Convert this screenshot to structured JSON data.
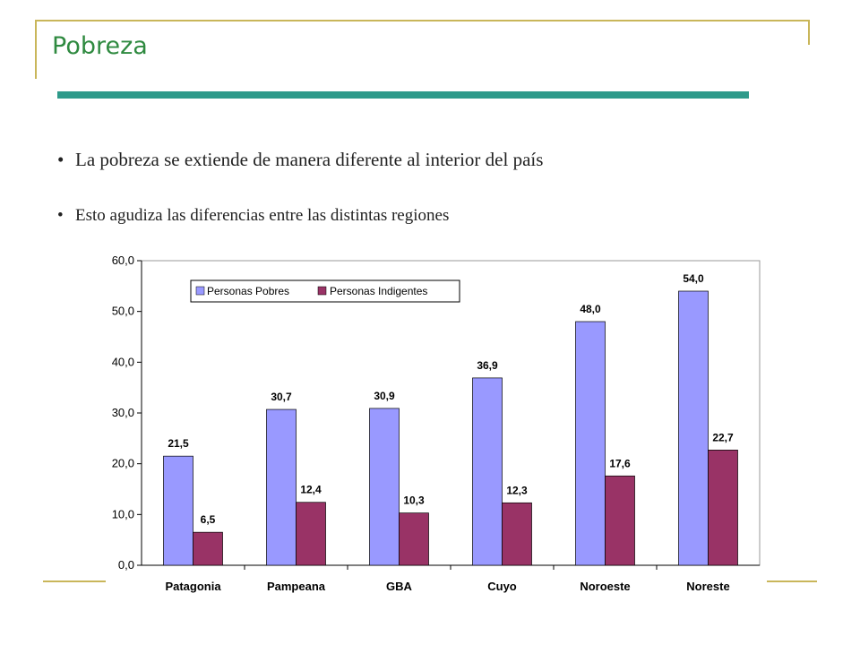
{
  "slide": {
    "title": "Pobreza",
    "bullets": [
      "La pobreza se extiende de manera diferente al interior del país",
      "Esto agudiza las diferencias entre las distintas regiones"
    ]
  },
  "colors": {
    "series_pobres": "#9999ff",
    "series_indigentes": "#993366",
    "title": "#2f8a40",
    "accent_bar": "#2e9a8a",
    "frame": "#c9b65a"
  },
  "chart_data": {
    "type": "bar",
    "title": "",
    "xlabel": "",
    "ylabel": "",
    "ylim": [
      0,
      60
    ],
    "yticks": [
      "0,0",
      "10,0",
      "20,0",
      "30,0",
      "40,0",
      "50,0",
      "60,0"
    ],
    "grid": false,
    "legend_position": "top-left",
    "categories": [
      "Patagonia",
      "Pampeana",
      "GBA",
      "Cuyo",
      "Noroeste",
      "Noreste"
    ],
    "series": [
      {
        "name": "Personas Pobres",
        "values": [
          21.5,
          30.7,
          30.9,
          36.9,
          48.0,
          54.0
        ],
        "labels": [
          "21,5",
          "30,7",
          "30,9",
          "36,9",
          "48,0",
          "54,0"
        ]
      },
      {
        "name": "Personas Indigentes",
        "values": [
          6.5,
          12.4,
          10.3,
          12.3,
          17.6,
          22.7
        ],
        "labels": [
          "6,5",
          "12,4",
          "10,3",
          "12,3",
          "17,6",
          "22,7"
        ]
      }
    ]
  }
}
